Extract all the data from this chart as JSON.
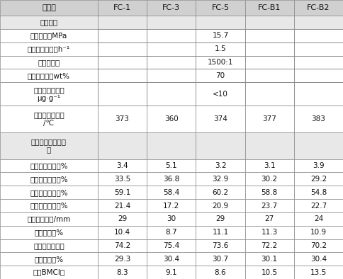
{
  "columns": [
    "催化剂",
    "FC-1",
    "FC-3",
    "FC-5",
    "FC-B1",
    "FC-B2"
  ],
  "rows": [
    {
      "label": "工艺条件",
      "values": [
        "",
        "",
        "",
        "",
        ""
      ],
      "is_section": true,
      "span_value": null
    },
    {
      "label": "反应压力，MPa",
      "values": [
        "",
        "",
        "",
        "",
        ""
      ],
      "is_section": false,
      "span_value": "15.7"
    },
    {
      "label": "液时体积空速，h⁻¹",
      "values": [
        "",
        "",
        "",
        "",
        ""
      ],
      "is_section": false,
      "span_value": "1.5"
    },
    {
      "label": "氢油体积比",
      "values": [
        "",
        "",
        "",
        "",
        ""
      ],
      "is_section": false,
      "span_value": "1500:1"
    },
    {
      "label": "控制转化率，wt%",
      "values": [
        "",
        "",
        "",
        "",
        ""
      ],
      "is_section": false,
      "span_value": "70"
    },
    {
      "label": "精制油氮含量，\nμg·g⁻¹",
      "values": [
        "",
        "",
        "",
        "",
        ""
      ],
      "is_section": false,
      "span_value": "<10"
    },
    {
      "label": "裂化段反应温度\n/℃",
      "values": [
        "373",
        "360",
        "374",
        "377",
        "383"
      ],
      "is_section": false,
      "span_value": null
    },
    {
      "label": "产品分布及产品性\n质",
      "values": [
        "",
        "",
        "",
        "",
        ""
      ],
      "is_section": true,
      "span_value": null
    },
    {
      "label": "轻石脑油收率，%",
      "values": [
        "3.4",
        "5.1",
        "3.2",
        "3.1",
        "3.9"
      ],
      "is_section": false,
      "span_value": null
    },
    {
      "label": "重石脑油收率，%",
      "values": [
        "33.5",
        "36.8",
        "32.9",
        "30.2",
        "29.2"
      ],
      "is_section": false,
      "span_value": null
    },
    {
      "label": "重石脑油芳潜，%",
      "values": [
        "59.1",
        "58.4",
        "60.2",
        "58.8",
        "54.8"
      ],
      "is_section": false,
      "span_value": null
    },
    {
      "label": "喷气燃料收率，%",
      "values": [
        "21.4",
        "17.2",
        "20.9",
        "23.7",
        "22.7"
      ],
      "is_section": false,
      "span_value": null
    },
    {
      "label": "喷气燃料烟点/mm",
      "values": [
        "29",
        "30",
        "29",
        "27",
        "24"
      ],
      "is_section": false,
      "span_value": null
    },
    {
      "label": "柴油收率，%",
      "values": [
        "10.4",
        "8.7",
        "11.1",
        "11.3",
        "10.9"
      ],
      "is_section": false,
      "span_value": null
    },
    {
      "label": "柴油十六烷指数",
      "values": [
        "74.2",
        "75.4",
        "73.6",
        "72.2",
        "70.2"
      ],
      "is_section": false,
      "span_value": null
    },
    {
      "label": "尾油收率，%",
      "values": [
        "29.3",
        "30.4",
        "30.7",
        "30.1",
        "30.4"
      ],
      "is_section": false,
      "span_value": null
    },
    {
      "label": "尾油BMCI值",
      "values": [
        "8.3",
        "9.1",
        "8.6",
        "10.5",
        "13.5"
      ],
      "is_section": false,
      "span_value": null
    }
  ],
  "bg_header": "#d0d0d0",
  "bg_section": "#e8e8e8",
  "bg_white": "#ffffff",
  "border_color": "#888888",
  "text_color": "#111111",
  "font_size": 7.5,
  "header_font_size": 8.0
}
